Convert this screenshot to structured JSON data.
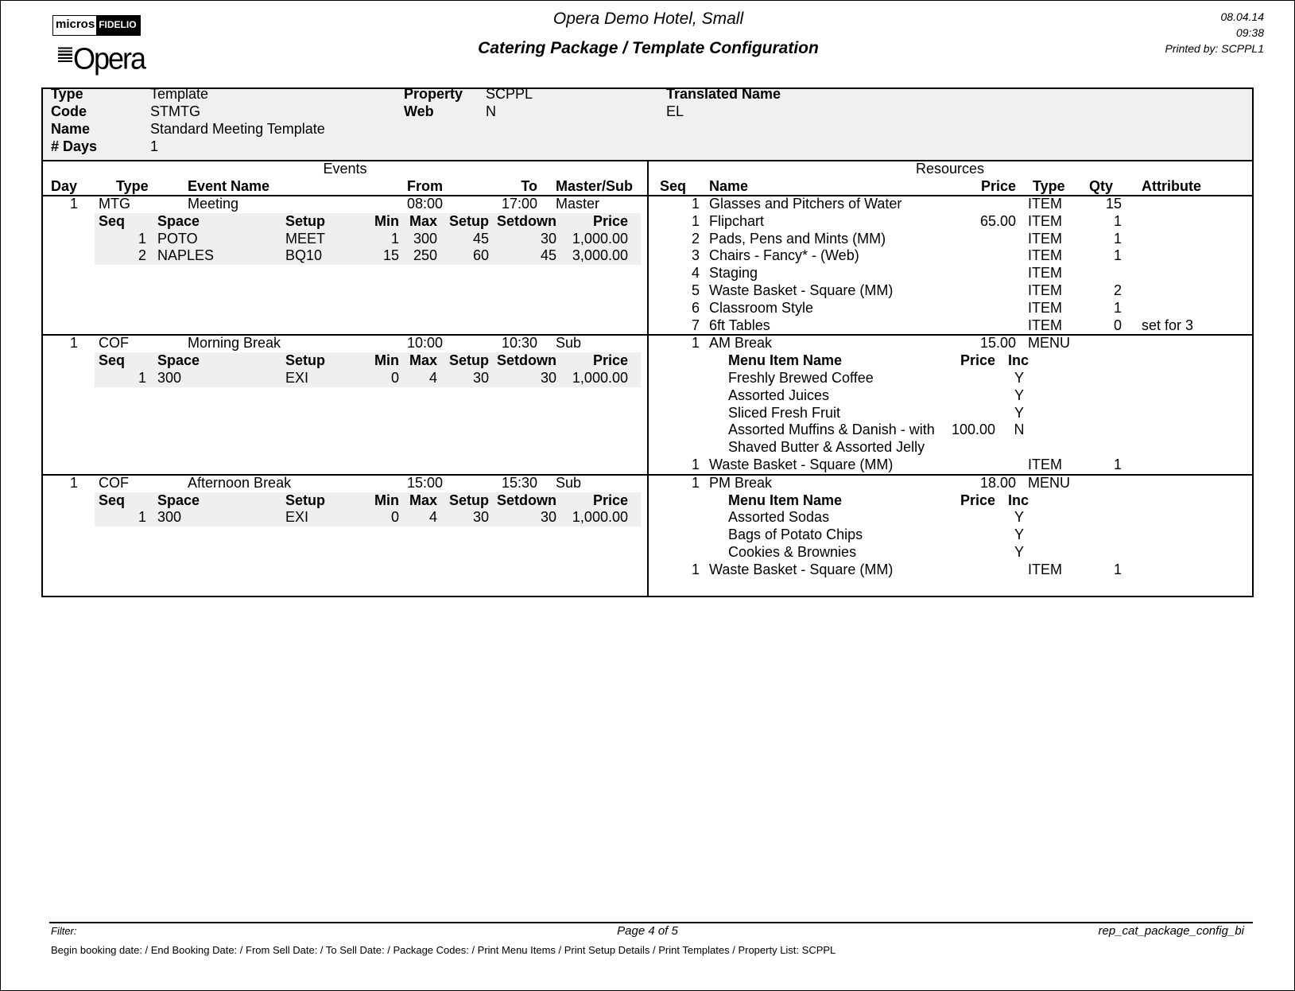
{
  "header": {
    "logo_micros": "micros",
    "logo_fidelio": "FIDELIO",
    "logo_opera": "Opera",
    "hotel": "Opera Demo Hotel, Small",
    "title": "Catering Package / Template Configuration",
    "date": "08.04.14",
    "time": "09:38",
    "printed_by": "Printed by: SCPPL1"
  },
  "info": {
    "type_label": "Type",
    "type": "Template",
    "code_label": "Code",
    "code": "STMTG",
    "name_label": "Name",
    "name": "Standard Meeting Template",
    "days_label": "# Days",
    "days": "1",
    "property_label": "Property",
    "property": "SCPPL",
    "web_label": "Web",
    "web": "N",
    "translated_label": "Translated Name",
    "translated": "EL"
  },
  "events_heading": "Events",
  "resources_heading": "Resources",
  "event_columns": {
    "day": "Day",
    "type": "Type",
    "name": "Event Name",
    "from": "From",
    "to": "To",
    "master_sub": "Master/Sub"
  },
  "space_columns": {
    "seq": "Seq",
    "space": "Space",
    "setup": "Setup",
    "min": "Min",
    "max": "Max",
    "setup_time": "Setup",
    "setdown": "Setdown",
    "price": "Price"
  },
  "resource_columns": {
    "seq": "Seq",
    "name": "Name",
    "price": "Price",
    "type": "Type",
    "qty": "Qty",
    "attribute": "Attribute"
  },
  "menu_columns": {
    "name": "Menu Item Name",
    "price": "Price",
    "inc": "Inc"
  },
  "sections": [
    {
      "event": {
        "day": "1",
        "type": "MTG",
        "name": "Meeting",
        "from": "08:00",
        "to": "17:00",
        "master_sub": "Master"
      },
      "spaces": [
        {
          "seq": "1",
          "space": "POTO",
          "setup": "MEET",
          "min": "1",
          "max": "300",
          "setup_time": "45",
          "setdown": "30",
          "price": "1,000.00"
        },
        {
          "seq": "2",
          "space": "NAPLES",
          "setup": "BQ10",
          "min": "15",
          "max": "250",
          "setup_time": "60",
          "setdown": "45",
          "price": "3,000.00"
        }
      ],
      "resources": [
        {
          "seq": "1",
          "name": "Glasses and Pitchers of Water",
          "price": "",
          "type": "ITEM",
          "qty": "15",
          "attribute": ""
        },
        {
          "seq": "1",
          "name": "Flipchart",
          "price": "65.00",
          "type": "ITEM",
          "qty": "1",
          "attribute": ""
        },
        {
          "seq": "2",
          "name": "Pads, Pens and Mints (MM)",
          "price": "",
          "type": "ITEM",
          "qty": "1",
          "attribute": ""
        },
        {
          "seq": "3",
          "name": "Chairs - Fancy* - (Web)",
          "price": "",
          "type": "ITEM",
          "qty": "1",
          "attribute": ""
        },
        {
          "seq": "4",
          "name": "Staging",
          "price": "",
          "type": "ITEM",
          "qty": "",
          "attribute": ""
        },
        {
          "seq": "5",
          "name": "Waste Basket - Square (MM)",
          "price": "",
          "type": "ITEM",
          "qty": "2",
          "attribute": ""
        },
        {
          "seq": "6",
          "name": "Classroom Style",
          "price": "",
          "type": "ITEM",
          "qty": "1",
          "attribute": ""
        },
        {
          "seq": "7",
          "name": "6ft Tables",
          "price": "",
          "type": "ITEM",
          "qty": "0",
          "attribute": "set for 3"
        }
      ]
    },
    {
      "event": {
        "day": "1",
        "type": "COF",
        "name": "Morning Break",
        "from": "10:00",
        "to": "10:30",
        "master_sub": "Sub"
      },
      "spaces": [
        {
          "seq": "1",
          "space": "300",
          "setup": "EXI",
          "min": "0",
          "max": "4",
          "setup_time": "30",
          "setdown": "30",
          "price": "1,000.00"
        }
      ],
      "resources": [
        {
          "seq": "1",
          "name": "AM Break",
          "price": "15.00",
          "type": "MENU",
          "qty": "",
          "attribute": "",
          "menu_items": [
            {
              "name": "Freshly Brewed Coffee",
              "price": "",
              "inc": "Y"
            },
            {
              "name": "Assorted Juices",
              "price": "",
              "inc": "Y"
            },
            {
              "name": "Sliced Fresh Fruit",
              "price": "",
              "inc": "Y"
            },
            {
              "name": "Assorted Muffins & Danish - with Shaved Butter & Assorted Jelly",
              "price": "100.00",
              "inc": "N"
            }
          ]
        },
        {
          "seq": "1",
          "name": "Waste Basket - Square (MM)",
          "price": "",
          "type": "ITEM",
          "qty": "1",
          "attribute": ""
        }
      ]
    },
    {
      "event": {
        "day": "1",
        "type": "COF",
        "name": "Afternoon Break",
        "from": "15:00",
        "to": "15:30",
        "master_sub": "Sub"
      },
      "spaces": [
        {
          "seq": "1",
          "space": "300",
          "setup": "EXI",
          "min": "0",
          "max": "4",
          "setup_time": "30",
          "setdown": "30",
          "price": "1,000.00"
        }
      ],
      "resources": [
        {
          "seq": "1",
          "name": "PM Break",
          "price": "18.00",
          "type": "MENU",
          "qty": "",
          "attribute": "",
          "menu_items": [
            {
              "name": "Assorted Sodas",
              "price": "",
              "inc": "Y"
            },
            {
              "name": "Bags of Potato Chips",
              "price": "",
              "inc": "Y"
            },
            {
              "name": "Cookies & Brownies",
              "price": "",
              "inc": "Y"
            }
          ]
        },
        {
          "seq": "1",
          "name": "Waste Basket - Square (MM)",
          "price": "",
          "type": "ITEM",
          "qty": "1",
          "attribute": ""
        }
      ]
    }
  ],
  "footer": {
    "filter": "Filter:",
    "page": "Page 4 of 5",
    "report": "rep_cat_package_config_bi",
    "criteria": "Begin booking date:  / End Booking Date:  / From Sell Date:  / To Sell Date:  / Package Codes:  / Print Menu Items / Print Setup Details / Print Templates / Property List: SCPPL"
  }
}
